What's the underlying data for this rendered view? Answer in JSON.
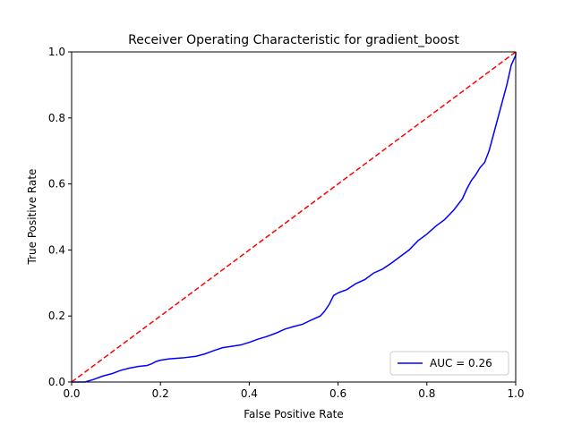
{
  "chart_data": {
    "type": "line",
    "title": "Receiver Operating Characteristic for gradient_boost",
    "xlabel": "False Positive Rate",
    "ylabel": "True Positive Rate",
    "xlim": [
      0,
      1
    ],
    "ylim": [
      0,
      1
    ],
    "xticks": [
      "0.0",
      "0.2",
      "0.4",
      "0.6",
      "0.8",
      "1.0"
    ],
    "yticks": [
      "0.0",
      "0.2",
      "0.4",
      "0.6",
      "0.8",
      "1.0"
    ],
    "grid": false,
    "legend_position": "lower-right",
    "series": [
      {
        "name": "AUC = 0.26",
        "color": "#0000ff",
        "style": "solid",
        "points": [
          [
            0.0,
            0.0
          ],
          [
            0.03,
            0.0
          ],
          [
            0.05,
            0.008
          ],
          [
            0.07,
            0.018
          ],
          [
            0.09,
            0.025
          ],
          [
            0.11,
            0.035
          ],
          [
            0.13,
            0.042
          ],
          [
            0.15,
            0.047
          ],
          [
            0.17,
            0.05
          ],
          [
            0.18,
            0.055
          ],
          [
            0.19,
            0.062
          ],
          [
            0.2,
            0.066
          ],
          [
            0.22,
            0.07
          ],
          [
            0.25,
            0.073
          ],
          [
            0.28,
            0.078
          ],
          [
            0.3,
            0.085
          ],
          [
            0.32,
            0.095
          ],
          [
            0.34,
            0.104
          ],
          [
            0.36,
            0.108
          ],
          [
            0.38,
            0.112
          ],
          [
            0.4,
            0.12
          ],
          [
            0.42,
            0.13
          ],
          [
            0.44,
            0.138
          ],
          [
            0.46,
            0.148
          ],
          [
            0.48,
            0.16
          ],
          [
            0.5,
            0.168
          ],
          [
            0.52,
            0.175
          ],
          [
            0.54,
            0.188
          ],
          [
            0.56,
            0.2
          ],
          [
            0.57,
            0.215
          ],
          [
            0.58,
            0.235
          ],
          [
            0.59,
            0.262
          ],
          [
            0.6,
            0.27
          ],
          [
            0.62,
            0.28
          ],
          [
            0.64,
            0.298
          ],
          [
            0.66,
            0.31
          ],
          [
            0.68,
            0.33
          ],
          [
            0.7,
            0.342
          ],
          [
            0.72,
            0.36
          ],
          [
            0.74,
            0.38
          ],
          [
            0.76,
            0.4
          ],
          [
            0.78,
            0.428
          ],
          [
            0.8,
            0.448
          ],
          [
            0.82,
            0.472
          ],
          [
            0.84,
            0.492
          ],
          [
            0.86,
            0.52
          ],
          [
            0.88,
            0.555
          ],
          [
            0.89,
            0.585
          ],
          [
            0.9,
            0.61
          ],
          [
            0.91,
            0.628
          ],
          [
            0.92,
            0.65
          ],
          [
            0.93,
            0.665
          ],
          [
            0.94,
            0.7
          ],
          [
            0.95,
            0.75
          ],
          [
            0.96,
            0.8
          ],
          [
            0.97,
            0.85
          ],
          [
            0.98,
            0.9
          ],
          [
            0.99,
            0.96
          ],
          [
            1.0,
            0.99
          ],
          [
            1.0,
            1.0
          ]
        ]
      },
      {
        "name": "",
        "color": "#ff0000",
        "style": "dashed",
        "points": [
          [
            0,
            0
          ],
          [
            1,
            1
          ]
        ]
      }
    ]
  }
}
